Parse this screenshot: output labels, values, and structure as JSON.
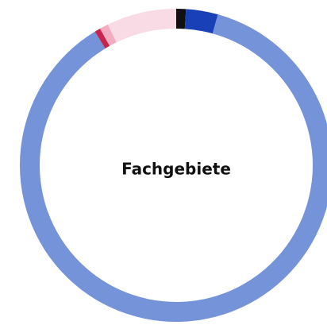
{
  "chart_data": {
    "type": "donut",
    "title": "Fachgebiete",
    "values": [
      1,
      3.3,
      87,
      0.6,
      0.9,
      7.2
    ],
    "colors": [
      "#111111",
      "#1a40b8",
      "#7593d9",
      "#c8254e",
      "#f2adc0",
      "#f8dbe4"
    ]
  }
}
